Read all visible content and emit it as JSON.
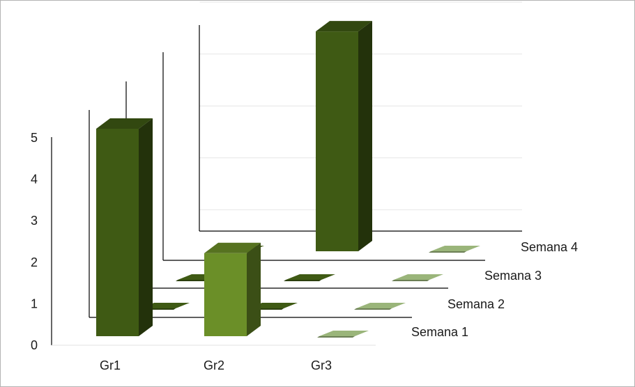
{
  "chart_data": {
    "type": "bar",
    "subtype": "3d-clustered-depth",
    "title": "",
    "xlabel": "",
    "ylabel": "",
    "categories": [
      "Gr1",
      "Gr2",
      "Gr3"
    ],
    "series": [
      {
        "name": "Semana 1",
        "values": [
          5,
          2,
          0
        ]
      },
      {
        "name": "Semana 2",
        "values": [
          0,
          0,
          0
        ]
      },
      {
        "name": "Semana 3",
        "values": [
          0,
          0,
          0
        ]
      },
      {
        "name": "Semana 4",
        "values": [
          0,
          5,
          0
        ]
      }
    ],
    "ylim": [
      0,
      5
    ],
    "yticks": [
      "0",
      "1",
      "2",
      "3",
      "4",
      "5"
    ],
    "grid": true,
    "legend": "none",
    "colors": {
      "Semana 1": [
        "#3f5a14",
        "#6b8f28",
        "#9ab57a"
      ],
      "Semana 2": [
        "#3f5a14",
        "#3f5a14",
        "#9ab57a"
      ],
      "Semana 3": [
        "#3f5a14",
        "#3f5a14",
        "#9ab57a"
      ],
      "Semana 4": [
        "#3f5a14",
        "#3f5a14",
        "#9ab57a"
      ]
    }
  }
}
